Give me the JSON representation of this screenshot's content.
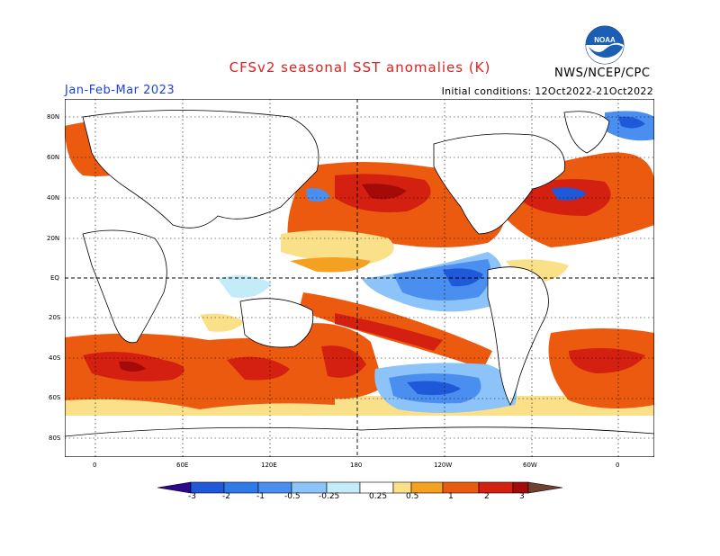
{
  "header": {
    "title": "CFSv2 seasonal SST anomalies (K)",
    "season": "Jan-Feb-Mar 2023",
    "initial_conditions": "Initial conditions: 12Oct2022-21Oct2022",
    "agency": "NWS/NCEP/CPC",
    "logo_text": "NOAA"
  },
  "map": {
    "lat_labels": [
      "80N",
      "60N",
      "40N",
      "20N",
      "EQ",
      "20S",
      "40S",
      "60S",
      "80S"
    ],
    "lon_labels": [
      "0",
      "60E",
      "120E",
      "180",
      "120W",
      "60W",
      "0"
    ],
    "anomaly_colors": {
      "strong_cool": "#1f58d8",
      "cool": "#4a8ff0",
      "weak_cool": "#8cc3f8",
      "faint_cool": "#c4ecf8",
      "faint_warm": "#fbe08a",
      "weak_warm": "#f4a020",
      "warm": "#ec5a10",
      "strong_warm": "#d42010",
      "very_strong_warm": "#a40a08"
    }
  },
  "colorbar": {
    "labels": [
      "-3",
      "-2",
      "-1",
      "-0.5",
      "-0.25",
      "0.25",
      "0.5",
      "1",
      "2",
      "3"
    ],
    "colors": [
      "#2a0a8c",
      "#1f58d8",
      "#2f7ae8",
      "#4a8ff0",
      "#8cc3f8",
      "#c4ecf8",
      "#ffffff",
      "#fbe08a",
      "#f4a020",
      "#ec5a10",
      "#d42010",
      "#a40a08",
      "#704030"
    ]
  }
}
